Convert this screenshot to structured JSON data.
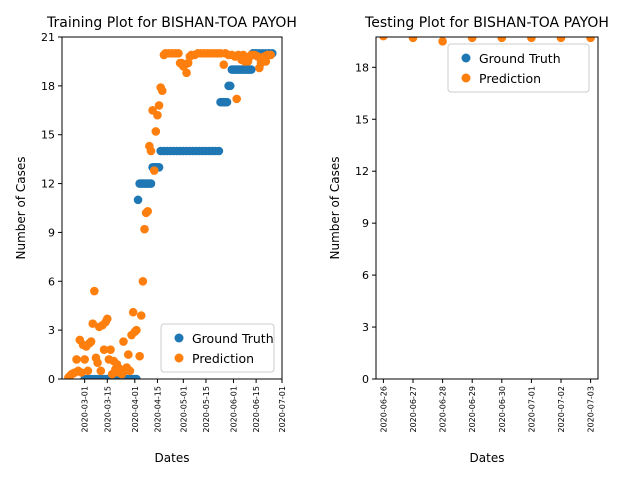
{
  "colors": {
    "ground_truth": "#1f77b4",
    "prediction": "#ff7f0e"
  },
  "chart_data": [
    {
      "type": "scatter",
      "title": "Training Plot for BISHAN-TOA PAYOH",
      "xlabel": "Dates",
      "ylabel": "Number of Cases",
      "ylim": [
        0,
        21
      ],
      "yticks": [
        0,
        3,
        6,
        9,
        12,
        15,
        18,
        21
      ],
      "xlim": [
        "2020-02-16",
        "2020-07-01"
      ],
      "xticks": [
        "2020-03-01",
        "2020-03-15",
        "2020-04-01",
        "2020-04-15",
        "2020-05-01",
        "2020-05-15",
        "2020-06-01",
        "2020-06-15",
        "2020-07-01"
      ],
      "legend": {
        "position": "lower-right",
        "entries": [
          "Ground Truth",
          "Prediction"
        ]
      },
      "series": [
        {
          "name": "Ground Truth",
          "points": [
            [
              "2020-03-01",
              0
            ],
            [
              "2020-03-03",
              0
            ],
            [
              "2020-03-05",
              0
            ],
            [
              "2020-03-07",
              0
            ],
            [
              "2020-03-09",
              0
            ],
            [
              "2020-03-11",
              0
            ],
            [
              "2020-03-13",
              0
            ],
            [
              "2020-03-15",
              0
            ],
            [
              "2020-03-17",
              0
            ],
            [
              "2020-03-19",
              0
            ],
            [
              "2020-03-21",
              0
            ],
            [
              "2020-03-23",
              0
            ],
            [
              "2020-03-25",
              0
            ],
            [
              "2020-03-27",
              0
            ],
            [
              "2020-03-29",
              0
            ],
            [
              "2020-03-31",
              0
            ],
            [
              "2020-04-01",
              0
            ],
            [
              "2020-04-02",
              0
            ],
            [
              "2020-04-03",
              11
            ],
            [
              "2020-04-04",
              12
            ],
            [
              "2020-04-05",
              12
            ],
            [
              "2020-04-06",
              12
            ],
            [
              "2020-04-07",
              12
            ],
            [
              "2020-04-08",
              12
            ],
            [
              "2020-04-09",
              12
            ],
            [
              "2020-04-10",
              12
            ],
            [
              "2020-04-11",
              12
            ],
            [
              "2020-04-12",
              13
            ],
            [
              "2020-04-13",
              13
            ],
            [
              "2020-04-14",
              13
            ],
            [
              "2020-04-15",
              13
            ],
            [
              "2020-04-16",
              13
            ],
            [
              "2020-04-17",
              14
            ],
            [
              "2020-04-19",
              14
            ],
            [
              "2020-04-21",
              14
            ],
            [
              "2020-04-23",
              14
            ],
            [
              "2020-04-25",
              14
            ],
            [
              "2020-04-27",
              14
            ],
            [
              "2020-04-29",
              14
            ],
            [
              "2020-05-01",
              14
            ],
            [
              "2020-05-03",
              14
            ],
            [
              "2020-05-05",
              14
            ],
            [
              "2020-05-07",
              14
            ],
            [
              "2020-05-09",
              14
            ],
            [
              "2020-05-11",
              14
            ],
            [
              "2020-05-13",
              14
            ],
            [
              "2020-05-15",
              14
            ],
            [
              "2020-05-17",
              14
            ],
            [
              "2020-05-19",
              14
            ],
            [
              "2020-05-21",
              14
            ],
            [
              "2020-05-23",
              14
            ],
            [
              "2020-05-24",
              17
            ],
            [
              "2020-05-25",
              17
            ],
            [
              "2020-05-26",
              17
            ],
            [
              "2020-05-27",
              17
            ],
            [
              "2020-05-28",
              17
            ],
            [
              "2020-05-29",
              18
            ],
            [
              "2020-05-30",
              18
            ],
            [
              "2020-05-31",
              19
            ],
            [
              "2020-06-01",
              19
            ],
            [
              "2020-06-02",
              19
            ],
            [
              "2020-06-03",
              19
            ],
            [
              "2020-06-04",
              19
            ],
            [
              "2020-06-05",
              19
            ],
            [
              "2020-06-06",
              19
            ],
            [
              "2020-06-07",
              19
            ],
            [
              "2020-06-08",
              19
            ],
            [
              "2020-06-09",
              19
            ],
            [
              "2020-06-10",
              19
            ],
            [
              "2020-06-11",
              19
            ],
            [
              "2020-06-12",
              19
            ],
            [
              "2020-06-13",
              20
            ],
            [
              "2020-06-15",
              20
            ],
            [
              "2020-06-17",
              20
            ],
            [
              "2020-06-19",
              20
            ],
            [
              "2020-06-21",
              20
            ],
            [
              "2020-06-23",
              20
            ],
            [
              "2020-06-25",
              20
            ]
          ]
        },
        {
          "name": "Prediction",
          "points": [
            [
              "2020-02-20",
              0.1
            ],
            [
              "2020-02-21",
              0.2
            ],
            [
              "2020-02-22",
              0.3
            ],
            [
              "2020-02-23",
              0.35
            ],
            [
              "2020-02-24",
              0.4
            ],
            [
              "2020-02-25",
              1.2
            ],
            [
              "2020-02-26",
              0.5
            ],
            [
              "2020-02-27",
              2.4
            ],
            [
              "2020-02-28",
              0.4
            ],
            [
              "2020-02-29",
              2.1
            ],
            [
              "2020-03-01",
              1.2
            ],
            [
              "2020-03-02",
              2.0
            ],
            [
              "2020-03-03",
              0.5
            ],
            [
              "2020-03-04",
              2.2
            ],
            [
              "2020-03-05",
              2.3
            ],
            [
              "2020-03-06",
              3.4
            ],
            [
              "2020-03-07",
              5.4
            ],
            [
              "2020-03-08",
              1.3
            ],
            [
              "2020-03-09",
              1.0
            ],
            [
              "2020-03-10",
              3.2
            ],
            [
              "2020-03-11",
              0.5
            ],
            [
              "2020-03-12",
              3.3
            ],
            [
              "2020-03-13",
              1.8
            ],
            [
              "2020-03-14",
              3.5
            ],
            [
              "2020-03-15",
              3.7
            ],
            [
              "2020-03-16",
              1.2
            ],
            [
              "2020-03-17",
              1.8
            ],
            [
              "2020-03-18",
              0.3
            ],
            [
              "2020-03-19",
              1.1
            ],
            [
              "2020-03-20",
              0.6
            ],
            [
              "2020-03-21",
              0.9
            ],
            [
              "2020-03-22",
              0.4
            ],
            [
              "2020-03-23",
              0.6
            ],
            [
              "2020-03-24",
              0.3
            ],
            [
              "2020-03-25",
              2.3
            ],
            [
              "2020-03-26",
              0.5
            ],
            [
              "2020-03-27",
              0.7
            ],
            [
              "2020-03-28",
              1.5
            ],
            [
              "2020-03-29",
              0.5
            ],
            [
              "2020-03-30",
              2.7
            ],
            [
              "2020-03-31",
              4.1
            ],
            [
              "2020-04-01",
              2.9
            ],
            [
              "2020-04-02",
              3.0
            ],
            [
              "2020-04-04",
              1.4
            ],
            [
              "2020-04-05",
              3.9
            ],
            [
              "2020-04-06",
              6.0
            ],
            [
              "2020-04-07",
              9.2
            ],
            [
              "2020-04-08",
              10.2
            ],
            [
              "2020-04-09",
              10.3
            ],
            [
              "2020-04-10",
              14.3
            ],
            [
              "2020-04-11",
              14.0
            ],
            [
              "2020-04-12",
              16.5
            ],
            [
              "2020-04-13",
              12.8
            ],
            [
              "2020-04-14",
              15.2
            ],
            [
              "2020-04-15",
              16.2
            ],
            [
              "2020-04-16",
              16.8
            ],
            [
              "2020-04-17",
              17.9
            ],
            [
              "2020-04-18",
              17.7
            ],
            [
              "2020-04-19",
              19.9
            ],
            [
              "2020-04-20",
              20.0
            ],
            [
              "2020-04-22",
              20.0
            ],
            [
              "2020-04-24",
              20.0
            ],
            [
              "2020-04-26",
              20.0
            ],
            [
              "2020-04-28",
              20.0
            ],
            [
              "2020-04-29",
              19.4
            ],
            [
              "2020-04-30",
              19.4
            ],
            [
              "2020-05-01",
              19.2
            ],
            [
              "2020-05-02",
              19.3
            ],
            [
              "2020-05-03",
              18.8
            ],
            [
              "2020-05-04",
              19.4
            ],
            [
              "2020-05-05",
              19.8
            ],
            [
              "2020-05-06",
              19.9
            ],
            [
              "2020-05-08",
              19.9
            ],
            [
              "2020-05-10",
              20.0
            ],
            [
              "2020-05-12",
              20.0
            ],
            [
              "2020-05-14",
              20.0
            ],
            [
              "2020-05-16",
              20.0
            ],
            [
              "2020-05-18",
              20.0
            ],
            [
              "2020-05-20",
              20.0
            ],
            [
              "2020-05-22",
              20.0
            ],
            [
              "2020-05-24",
              20.0
            ],
            [
              "2020-05-26",
              19.3
            ],
            [
              "2020-05-27",
              20.0
            ],
            [
              "2020-05-29",
              19.9
            ],
            [
              "2020-05-31",
              19.9
            ],
            [
              "2020-06-02",
              19.8
            ],
            [
              "2020-06-03",
              17.2
            ],
            [
              "2020-06-04",
              19.9
            ],
            [
              "2020-06-06",
              19.6
            ],
            [
              "2020-06-07",
              19.9
            ],
            [
              "2020-06-08",
              19.5
            ],
            [
              "2020-06-10",
              19.5
            ],
            [
              "2020-06-11",
              19.8
            ],
            [
              "2020-06-12",
              19.9
            ],
            [
              "2020-06-14",
              19.9
            ],
            [
              "2020-06-16",
              19.8
            ],
            [
              "2020-06-17",
              19.1
            ],
            [
              "2020-06-18",
              19.4
            ],
            [
              "2020-06-20",
              19.8
            ],
            [
              "2020-06-21",
              19.5
            ],
            [
              "2020-06-22",
              19.9
            ],
            [
              "2020-06-24",
              19.9
            ]
          ]
        }
      ]
    },
    {
      "type": "scatter",
      "title": "Testing Plot for BISHAN-TOA PAYOH",
      "xlabel": "Dates",
      "ylabel": "Number of Cases",
      "ylim": [
        0,
        19.75
      ],
      "yticks": [
        0,
        3,
        6,
        9,
        12,
        15,
        18
      ],
      "xlim": [
        "2020-06-25 18:00",
        "2020-07-03 06:00"
      ],
      "xticks": [
        "2020-06-26",
        "2020-06-27",
        "2020-06-28",
        "2020-06-29",
        "2020-06-30",
        "2020-07-01",
        "2020-07-02",
        "2020-07-03"
      ],
      "legend": {
        "position": "upper-right",
        "entries": [
          "Ground Truth",
          "Prediction"
        ]
      },
      "series": [
        {
          "name": "Ground Truth",
          "points": [
            [
              "2020-06-26",
              20
            ],
            [
              "2020-06-27",
              20
            ],
            [
              "2020-06-28",
              20
            ],
            [
              "2020-06-29",
              20
            ],
            [
              "2020-06-30",
              20
            ],
            [
              "2020-07-01",
              20
            ],
            [
              "2020-07-02",
              20
            ],
            [
              "2020-07-03",
              20
            ]
          ]
        },
        {
          "name": "Prediction",
          "points": [
            [
              "2020-06-26",
              19.8
            ],
            [
              "2020-06-27",
              19.7
            ],
            [
              "2020-06-28",
              19.5
            ],
            [
              "2020-06-29",
              19.7
            ],
            [
              "2020-06-30",
              19.7
            ],
            [
              "2020-07-01",
              19.7
            ],
            [
              "2020-07-02",
              19.7
            ],
            [
              "2020-07-03",
              19.7
            ]
          ]
        }
      ]
    }
  ]
}
